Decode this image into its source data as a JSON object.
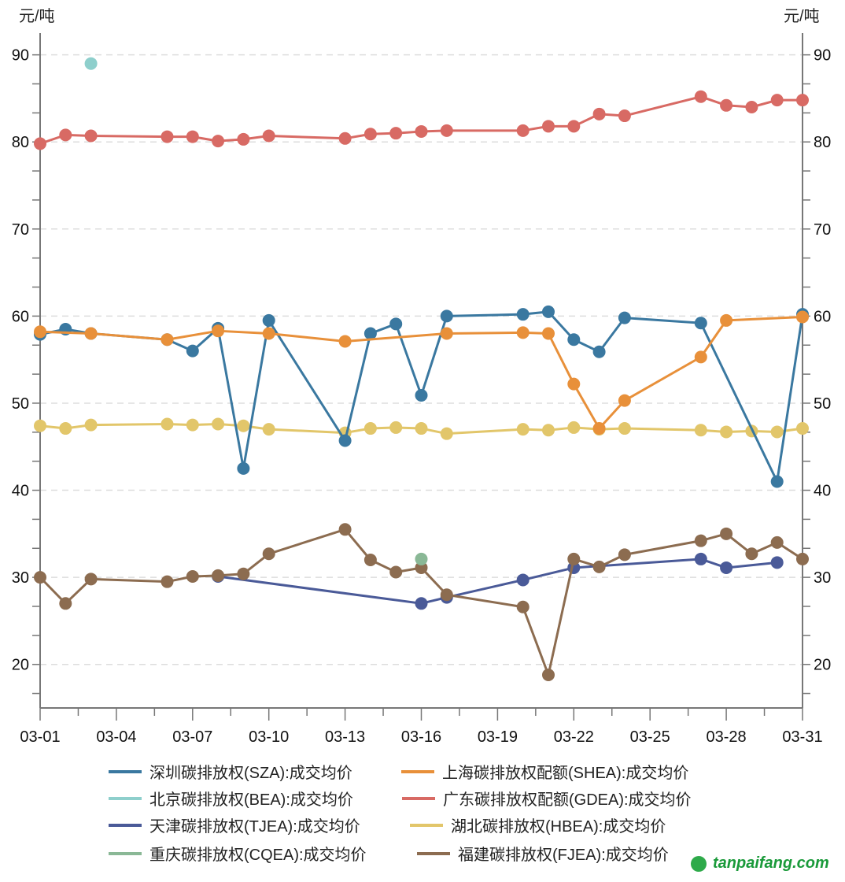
{
  "chart_data": {
    "type": "line",
    "title": "",
    "ylabel_left": "元/吨",
    "ylabel_right": "元/吨",
    "xlabel": "",
    "ylim": [
      15,
      92.5
    ],
    "yticks": [
      20,
      30,
      40,
      50,
      60,
      70,
      80,
      90
    ],
    "grid": true,
    "legend_position": "bottom",
    "x_days": [
      1,
      31
    ],
    "xticks": [
      "03-01",
      "03-04",
      "03-07",
      "03-10",
      "03-13",
      "03-16",
      "03-19",
      "03-22",
      "03-25",
      "03-28",
      "03-31"
    ],
    "series": [
      {
        "name": "深圳碳排放权(SZA):成交均价",
        "color": "#3a78a0",
        "points": [
          [
            "03-01",
            57.9
          ],
          [
            "03-02",
            58.5
          ],
          [
            "03-03",
            58.0
          ],
          [
            "03-06",
            57.3
          ],
          [
            "03-07",
            56.0
          ],
          [
            "03-08",
            58.6
          ],
          [
            "03-09",
            42.5
          ],
          [
            "03-10",
            59.5
          ],
          [
            "03-13",
            45.7
          ],
          [
            "03-14",
            58.0
          ],
          [
            "03-15",
            59.1
          ],
          [
            "03-16",
            50.9
          ],
          [
            "03-17",
            60.0
          ],
          [
            "03-20",
            60.2
          ],
          [
            "03-21",
            60.5
          ],
          [
            "03-22",
            57.3
          ],
          [
            "03-23",
            55.9
          ],
          [
            "03-24",
            59.8
          ],
          [
            "03-27",
            59.2
          ],
          [
            "03-30",
            41.0
          ],
          [
            "03-31",
            60.2
          ]
        ]
      },
      {
        "name": "上海碳排放权配额(SHEA):成交均价",
        "color": "#e8903a",
        "points": [
          [
            "03-01",
            58.2
          ],
          [
            "03-03",
            58.0
          ],
          [
            "03-06",
            57.3
          ],
          [
            "03-08",
            58.3
          ],
          [
            "03-10",
            58.0
          ],
          [
            "03-13",
            57.1
          ],
          [
            "03-17",
            58.0
          ],
          [
            "03-20",
            58.1
          ],
          [
            "03-21",
            58.0
          ],
          [
            "03-22",
            52.2
          ],
          [
            "03-23",
            47.1
          ],
          [
            "03-24",
            50.3
          ],
          [
            "03-27",
            55.3
          ],
          [
            "03-28",
            59.5
          ],
          [
            "03-31",
            59.9
          ]
        ]
      },
      {
        "name": "北京碳排放权(BEA):成交均价",
        "color": "#8ecfcc",
        "points": [
          [
            "03-03",
            89.0
          ]
        ]
      },
      {
        "name": "广东碳排放权配额(GDEA):成交均价",
        "color": "#d86a64",
        "points": [
          [
            "03-01",
            79.8
          ],
          [
            "03-02",
            80.8
          ],
          [
            "03-03",
            80.7
          ],
          [
            "03-06",
            80.6
          ],
          [
            "03-07",
            80.6
          ],
          [
            "03-08",
            80.1
          ],
          [
            "03-09",
            80.3
          ],
          [
            "03-10",
            80.7
          ],
          [
            "03-13",
            80.4
          ],
          [
            "03-14",
            80.9
          ],
          [
            "03-15",
            81.0
          ],
          [
            "03-16",
            81.2
          ],
          [
            "03-17",
            81.3
          ],
          [
            "03-20",
            81.3
          ],
          [
            "03-21",
            81.8
          ],
          [
            "03-22",
            81.8
          ],
          [
            "03-23",
            83.2
          ],
          [
            "03-24",
            83.0
          ],
          [
            "03-27",
            85.2
          ],
          [
            "03-28",
            84.2
          ],
          [
            "03-29",
            84.0
          ],
          [
            "03-30",
            84.8
          ],
          [
            "03-31",
            84.8
          ]
        ]
      },
      {
        "name": "天津碳排放权(TJEA):成交均价",
        "color": "#4a5a98",
        "points": [
          [
            "03-08",
            30.1
          ],
          [
            "03-16",
            27.0
          ],
          [
            "03-17",
            27.7
          ],
          [
            "03-20",
            29.7
          ],
          [
            "03-22",
            31.1
          ],
          [
            "03-27",
            32.1
          ],
          [
            "03-28",
            31.1
          ],
          [
            "03-30",
            31.7
          ]
        ]
      },
      {
        "name": "湖北碳排放权(HBEA):成交均价",
        "color": "#e2c66a",
        "points": [
          [
            "03-01",
            47.4
          ],
          [
            "03-02",
            47.1
          ],
          [
            "03-03",
            47.5
          ],
          [
            "03-06",
            47.6
          ],
          [
            "03-07",
            47.5
          ],
          [
            "03-08",
            47.6
          ],
          [
            "03-09",
            47.4
          ],
          [
            "03-10",
            47.0
          ],
          [
            "03-13",
            46.6
          ],
          [
            "03-14",
            47.1
          ],
          [
            "03-15",
            47.2
          ],
          [
            "03-16",
            47.1
          ],
          [
            "03-17",
            46.5
          ],
          [
            "03-20",
            47.0
          ],
          [
            "03-21",
            46.9
          ],
          [
            "03-22",
            47.2
          ],
          [
            "03-23",
            47.0
          ],
          [
            "03-24",
            47.1
          ],
          [
            "03-27",
            46.9
          ],
          [
            "03-28",
            46.7
          ],
          [
            "03-29",
            46.8
          ],
          [
            "03-30",
            46.7
          ],
          [
            "03-31",
            47.1
          ]
        ]
      },
      {
        "name": "重庆碳排放权(CQEA):成交均价",
        "color": "#8ab896",
        "points": [
          [
            "03-16",
            32.1
          ]
        ]
      },
      {
        "name": "福建碳排放权(FJEA):成交均价",
        "color": "#8c6c50",
        "points": [
          [
            "03-01",
            30.0
          ],
          [
            "03-02",
            27.0
          ],
          [
            "03-03",
            29.8
          ],
          [
            "03-06",
            29.5
          ],
          [
            "03-07",
            30.1
          ],
          [
            "03-08",
            30.2
          ],
          [
            "03-09",
            30.4
          ],
          [
            "03-10",
            32.7
          ],
          [
            "03-13",
            35.5
          ],
          [
            "03-14",
            32.0
          ],
          [
            "03-15",
            30.6
          ],
          [
            "03-16",
            31.1
          ],
          [
            "03-17",
            28.0
          ],
          [
            "03-20",
            26.6
          ],
          [
            "03-21",
            18.8
          ],
          [
            "03-22",
            32.1
          ],
          [
            "03-23",
            31.2
          ],
          [
            "03-24",
            32.6
          ],
          [
            "03-27",
            34.2
          ],
          [
            "03-28",
            35.0
          ],
          [
            "03-29",
            32.7
          ],
          [
            "03-30",
            34.0
          ],
          [
            "03-31",
            32.1
          ]
        ]
      }
    ]
  },
  "watermark": "tanpaifang.com"
}
